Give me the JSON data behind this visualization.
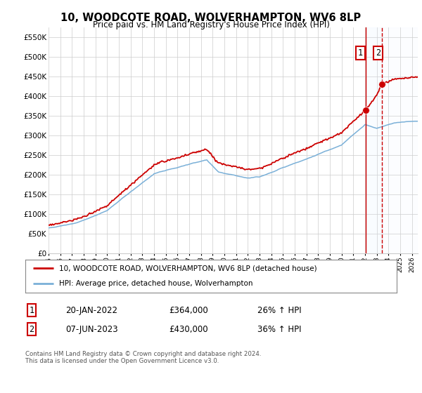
{
  "title": "10, WOODCOTE ROAD, WOLVERHAMPTON, WV6 8LP",
  "subtitle": "Price paid vs. HM Land Registry's House Price Index (HPI)",
  "legend_line1": "10, WOODCOTE ROAD, WOLVERHAMPTON, WV6 8LP (detached house)",
  "legend_line2": "HPI: Average price, detached house, Wolverhampton",
  "table_row1": [
    "1",
    "20-JAN-2022",
    "£364,000",
    "26% ↑ HPI"
  ],
  "table_row2": [
    "2",
    "07-JUN-2023",
    "£430,000",
    "36% ↑ HPI"
  ],
  "footer": "Contains HM Land Registry data © Crown copyright and database right 2024.\nThis data is licensed under the Open Government Licence v3.0.",
  "hpi_color": "#7ab0d8",
  "price_color": "#cc0000",
  "marker_color": "#cc0000",
  "vline1_color": "#cc0000",
  "vline2_color": "#cc0000",
  "shade_color": "#ddeeff",
  "ylim": [
    0,
    575000
  ],
  "yticks": [
    0,
    50000,
    100000,
    150000,
    200000,
    250000,
    300000,
    350000,
    400000,
    450000,
    500000,
    550000
  ],
  "ytick_labels": [
    "£0",
    "£50K",
    "£100K",
    "£150K",
    "£200K",
    "£250K",
    "£300K",
    "£350K",
    "£400K",
    "£450K",
    "£500K",
    "£550K"
  ],
  "sale1_year": 2022.05,
  "sale1_price": 364000,
  "sale2_year": 2023.44,
  "sale2_price": 430000,
  "xlim_start": 1995,
  "xlim_end": 2026.5
}
